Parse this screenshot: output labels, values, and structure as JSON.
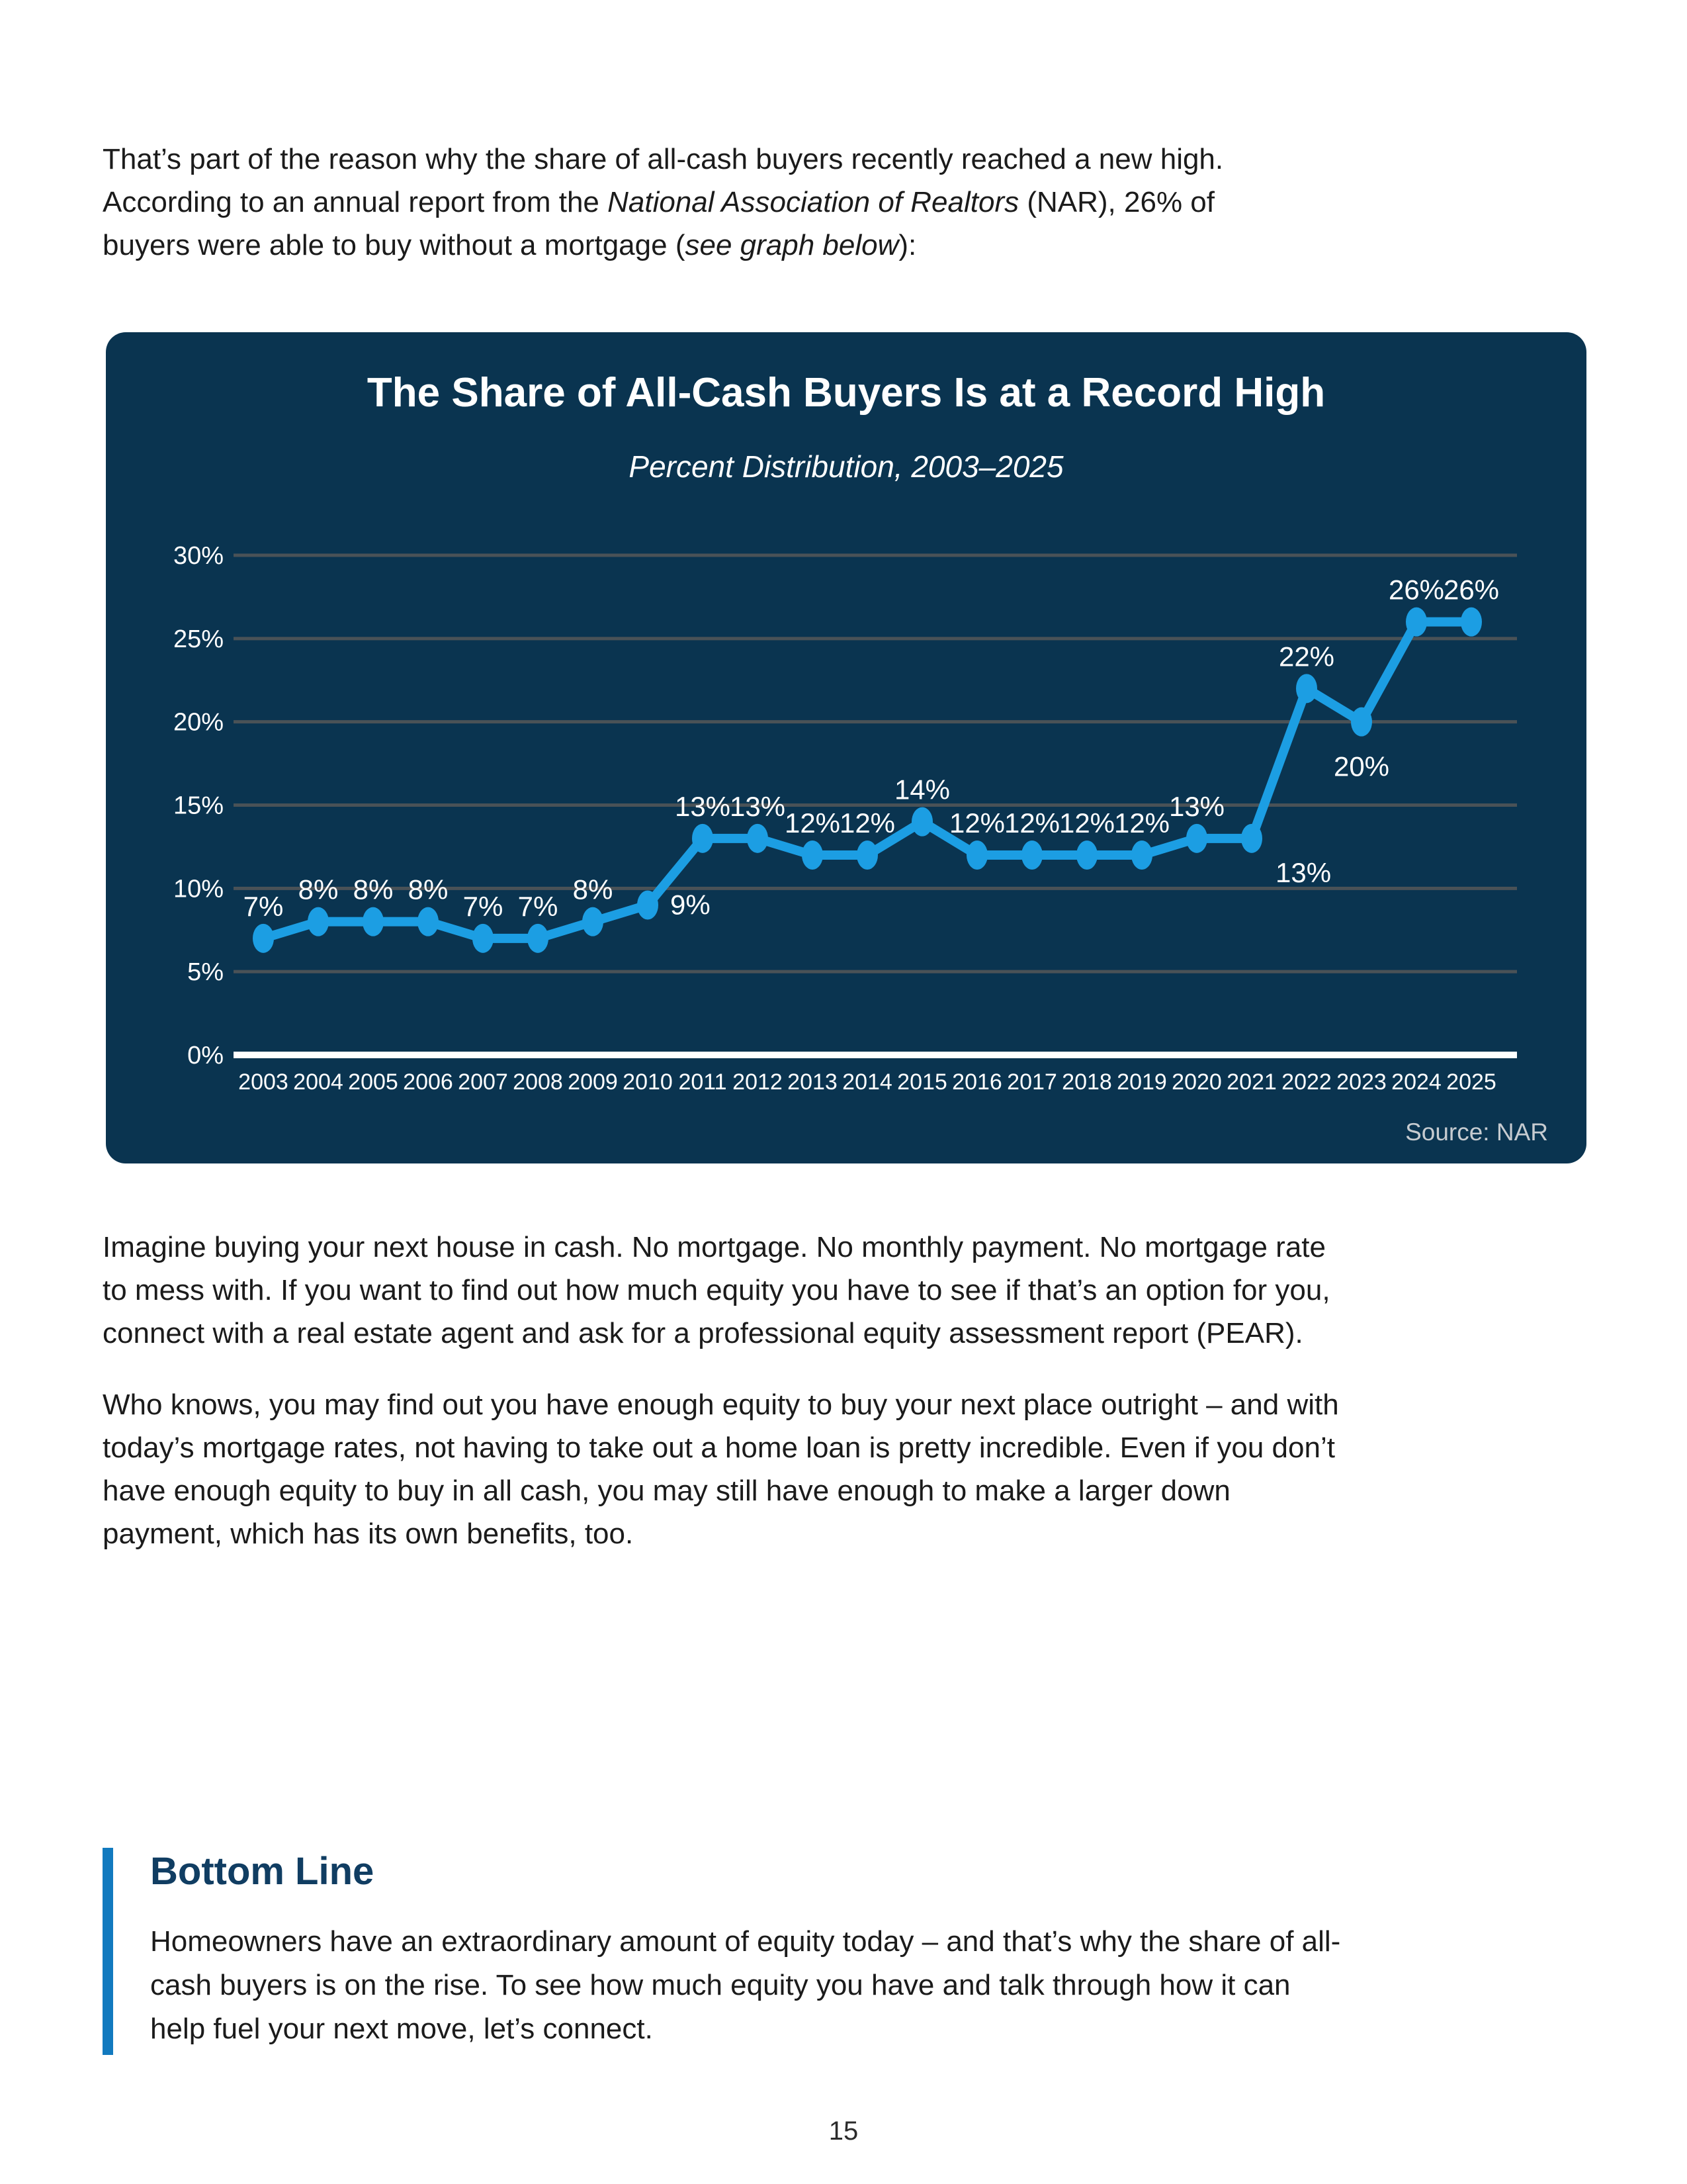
{
  "page": {
    "number": "15"
  },
  "intro_paragraph": {
    "segments": [
      {
        "t": "That’s part of the reason why the share of all-cash buyers recently reached a new high."
      },
      {
        "br": true
      },
      {
        "t": "According to an annual report from the "
      },
      {
        "t": "National Association of Realtors",
        "i": true
      },
      {
        "t": " (NAR), 26% of"
      },
      {
        "br": true
      },
      {
        "t": "buyers were able to buy without a mortgage ("
      },
      {
        "t": "see graph below",
        "i": true
      },
      {
        "t": "):"
      }
    ]
  },
  "chart_card": {
    "title": "The Share of All-Cash Buyers Is at a Record High",
    "subtitle": "Percent Distribution, 2003–2025",
    "source": "Source: NAR",
    "colors": {
      "card_bg": "#0A3450",
      "line": "#1C9EE3",
      "gridline": "#4A5257",
      "axis_line": "#FFFFFF",
      "text": "#FFFFFF",
      "source": "#C6CBD0"
    }
  },
  "chart_data": {
    "type": "line",
    "title": "The Share of All-Cash Buyers Is at a Record High",
    "subtitle": "Percent Distribution, 2003–2025",
    "x": [
      2003,
      2004,
      2005,
      2006,
      2007,
      2008,
      2009,
      2010,
      2011,
      2012,
      2013,
      2014,
      2015,
      2016,
      2017,
      2018,
      2019,
      2020,
      2021,
      2022,
      2023,
      2024,
      2025
    ],
    "values": [
      7,
      8,
      8,
      8,
      7,
      7,
      8,
      9,
      13,
      13,
      12,
      12,
      14,
      12,
      12,
      12,
      12,
      13,
      13,
      22,
      20,
      26,
      26
    ],
    "unit": "%",
    "ylim": [
      0,
      30
    ],
    "ytick_step": 5,
    "grid": true,
    "legend": false,
    "line_color": "#1C9EE3",
    "label_overrides": {
      "2010": "right",
      "2021": "below-right",
      "2023": "below"
    },
    "source": "NAR"
  },
  "body_paragraphs": [
    {
      "segments": [
        {
          "t": "Imagine buying your next house in cash. No mortgage. No monthly payment. No mortgage rate"
        },
        {
          "br": true
        },
        {
          "t": "to mess with. If you want to find out how much equity you have to see if that’s an option for you,"
        },
        {
          "br": true
        },
        {
          "t": "connect with a real estate agent and ask for a professional equity assessment report (PEAR)."
        }
      ]
    },
    {
      "segments": [
        {
          "t": "Who knows, you may find out you have enough equity to buy your next place outright – and with"
        },
        {
          "br": true
        },
        {
          "t": "today’s mortgage rates, not having to take out a home loan is pretty incredible. Even if you don’t"
        },
        {
          "br": true
        },
        {
          "t": "have enough equity to buy in all cash, you may still have enough to make a larger down"
        },
        {
          "br": true
        },
        {
          "t": "payment, which has its own benefits, too."
        }
      ]
    }
  ],
  "bottom_line": {
    "heading": "Bottom Line",
    "accent_color": "#127ABF",
    "heading_color": "#103D62",
    "segments": [
      {
        "t": "Homeowners have an extraordinary amount of equity today – and that’s why the share of all-"
      },
      {
        "br": true
      },
      {
        "t": "cash buyers is on the rise. To see how much equity you have and talk through how it can"
      },
      {
        "br": true
      },
      {
        "t": "help fuel your next move, let’s connect."
      }
    ]
  }
}
